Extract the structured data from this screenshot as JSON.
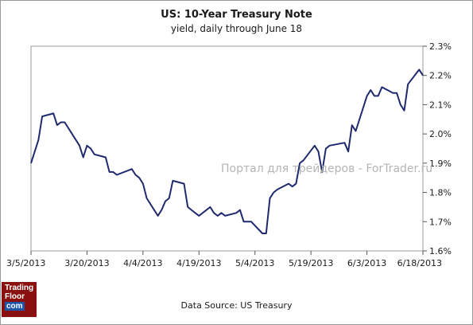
{
  "header": {
    "title": "US: 10-Year Treasury Note",
    "subtitle": "yield, daily through June 18"
  },
  "footer": {
    "source": "Data Source: US Treasury"
  },
  "watermark": "Портал для трейдеров - ForTrader.ru",
  "logo": {
    "line1": "Trading",
    "line2": "Floor",
    "line3": "com"
  },
  "colors": {
    "line": "#1f2a6e",
    "axis": "#555555",
    "plot_border": "#9a9a9a"
  },
  "chart_data": {
    "type": "line",
    "title": "US: 10-Year Treasury Note",
    "subtitle": "yield, daily through June 18",
    "x_ticks": [
      "3/5/2013",
      "3/20/2013",
      "4/4/2013",
      "4/19/2013",
      "5/4/2013",
      "5/19/2013",
      "6/3/2013",
      "6/18/2013"
    ],
    "y_ticks": [
      "1.6%",
      "1.7%",
      "1.8%",
      "1.9%",
      "2.0%",
      "2.1%",
      "2.2%",
      "2.3%"
    ],
    "ylim": [
      1.6,
      2.3
    ],
    "xlim": [
      "2013-03-05",
      "2013-06-18"
    ],
    "grid": false,
    "series": [
      {
        "x": [
          "2013-03-05",
          "2013-03-06",
          "2013-03-07",
          "2013-03-08",
          "2013-03-11",
          "2013-03-12",
          "2013-03-13",
          "2013-03-14",
          "2013-03-15",
          "2013-03-18",
          "2013-03-19",
          "2013-03-20",
          "2013-03-21",
          "2013-03-22",
          "2013-03-25",
          "2013-03-26",
          "2013-03-27",
          "2013-03-28",
          "2013-04-01",
          "2013-04-02",
          "2013-04-03",
          "2013-04-04",
          "2013-04-05",
          "2013-04-08",
          "2013-04-09",
          "2013-04-10",
          "2013-04-11",
          "2013-04-12",
          "2013-04-15",
          "2013-04-16",
          "2013-04-17",
          "2013-04-18",
          "2013-04-19",
          "2013-04-22",
          "2013-04-23",
          "2013-04-24",
          "2013-04-25",
          "2013-04-26",
          "2013-04-29",
          "2013-04-30",
          "2013-05-01",
          "2013-05-02",
          "2013-05-03",
          "2013-05-06",
          "2013-05-07",
          "2013-05-08",
          "2013-05-09",
          "2013-05-10",
          "2013-05-13",
          "2013-05-14",
          "2013-05-15",
          "2013-05-16",
          "2013-05-17",
          "2013-05-20",
          "2013-05-21",
          "2013-05-22",
          "2013-05-23",
          "2013-05-24",
          "2013-05-28",
          "2013-05-29",
          "2013-05-30",
          "2013-05-31",
          "2013-06-03",
          "2013-06-04",
          "2013-06-05",
          "2013-06-06",
          "2013-06-07",
          "2013-06-10",
          "2013-06-11",
          "2013-06-12",
          "2013-06-13",
          "2013-06-14",
          "2013-06-17",
          "2013-06-18"
        ],
        "values": [
          1.9,
          1.94,
          1.98,
          2.06,
          2.07,
          2.03,
          2.04,
          2.04,
          2.02,
          1.96,
          1.92,
          1.96,
          1.95,
          1.93,
          1.92,
          1.87,
          1.87,
          1.86,
          1.88,
          1.86,
          1.85,
          1.83,
          1.78,
          1.72,
          1.74,
          1.77,
          1.78,
          1.84,
          1.83,
          1.75,
          1.74,
          1.73,
          1.72,
          1.75,
          1.73,
          1.72,
          1.73,
          1.72,
          1.73,
          1.74,
          1.7,
          1.7,
          1.7,
          1.66,
          1.66,
          1.78,
          1.8,
          1.81,
          1.83,
          1.82,
          1.83,
          1.9,
          1.91,
          1.96,
          1.94,
          1.87,
          1.95,
          1.96,
          1.97,
          1.94,
          2.03,
          2.01,
          2.13,
          2.15,
          2.13,
          2.13,
          2.16,
          2.14,
          2.14,
          2.1,
          2.08,
          2.17,
          2.22,
          2.2
        ]
      }
    ]
  }
}
